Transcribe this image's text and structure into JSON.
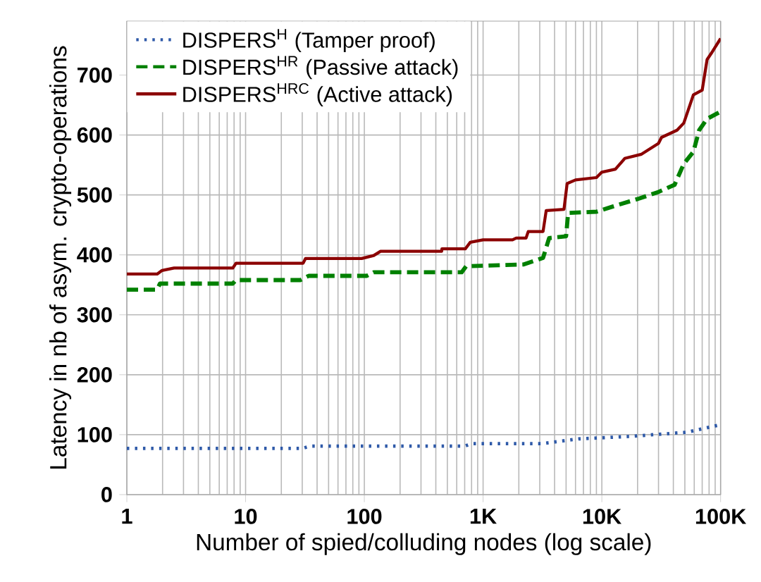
{
  "chart_data": {
    "type": "line",
    "xlabel": "Number of spied/colluding nodes (log scale)",
    "ylabel": "Latency in nb of asym. crypto-operations",
    "log": "x",
    "grid": true,
    "legend": "top left",
    "marker": "none",
    "xlim": [
      1,
      100000
    ],
    "ylim": [
      0,
      790
    ],
    "xticks": [
      {
        "value": 1,
        "label": "1"
      },
      {
        "value": 10,
        "label": "10"
      },
      {
        "value": 100,
        "label": "100"
      },
      {
        "value": 1000,
        "label": "1K"
      },
      {
        "value": 10000,
        "label": "10K"
      },
      {
        "value": 100000,
        "label": "100K"
      }
    ],
    "yticks": [
      0,
      100,
      200,
      300,
      400,
      500,
      600,
      700
    ],
    "series": [
      {
        "name": "DISPERS$^{H}$   (Tamper proof)",
        "color": "#2e59a8",
        "line_style": "dotted",
        "x": [
          1,
          30,
          35,
          700,
          800,
          3100,
          6400,
          17000,
          52000,
          97000
        ],
        "values": [
          77,
          77,
          81,
          81,
          85,
          85,
          93,
          97,
          104,
          116
        ]
      },
      {
        "name": "DISPERS$^{HR}$  (Passive attack)",
        "color": "#008000",
        "line_style": "dashed",
        "x": [
          1,
          1.8,
          1.9,
          7.8,
          8.3,
          29,
          34,
          105,
          120,
          660,
          720,
          2200,
          3200,
          3600,
          5000,
          5200,
          9000,
          13000,
          20600,
          30000,
          41000,
          49000,
          59000,
          66000,
          77000,
          100000
        ],
        "values": [
          342,
          342,
          352,
          352,
          358,
          358,
          365,
          365,
          371,
          371,
          381,
          384,
          395,
          428,
          431,
          470,
          472,
          482,
          494,
          505,
          517,
          552,
          572,
          608,
          627,
          639
        ]
      },
      {
        "name": "DISPERS$^{HRC}$ (Active attack)",
        "color": "#8b0000",
        "line_style": "solid",
        "x": [
          1,
          1.8,
          1.98,
          2.5,
          7.8,
          8.3,
          30.5,
          32,
          95,
          120,
          137,
          448,
          450,
          708,
          780,
          1000,
          1770,
          1900,
          2300,
          2400,
          3200,
          3400,
          4800,
          5100,
          6000,
          9000,
          10000,
          13000,
          15600,
          21600,
          30000,
          31800,
          43000,
          49000,
          59000,
          70000,
          77000,
          84000,
          100000
        ],
        "values": [
          368,
          368,
          374,
          378,
          378,
          386,
          386,
          394,
          394,
          399,
          406,
          406,
          410,
          410,
          421,
          425,
          425,
          428,
          428,
          439,
          439,
          474,
          476,
          519,
          525,
          529,
          538,
          543,
          561,
          568,
          586,
          596,
          608,
          620,
          667,
          675,
          726,
          737,
          761
        ]
      }
    ]
  }
}
